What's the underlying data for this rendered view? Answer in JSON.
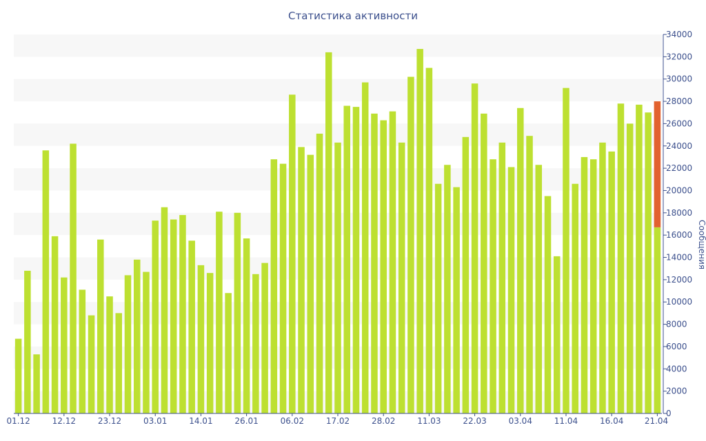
{
  "title": "Статистика активности",
  "colors": {
    "bar": "#bde031",
    "highlight": "#e2622f",
    "text": "#3b4f8c",
    "band": "#f7f7f7",
    "axis": "#3b4f8c"
  },
  "chart_data": {
    "type": "bar",
    "title": "Статистика активности",
    "ylabel": "Сообщения",
    "xlabel": "",
    "ylim": [
      0,
      34000
    ],
    "y_ticks": [
      0,
      2000,
      4000,
      6000,
      8000,
      10000,
      12000,
      14000,
      16000,
      18000,
      20000,
      22000,
      24000,
      26000,
      28000,
      30000,
      32000,
      34000
    ],
    "x_tick_labels": [
      {
        "index": 0,
        "label": "01.12"
      },
      {
        "index": 5,
        "label": "12.12"
      },
      {
        "index": 10,
        "label": "23.12"
      },
      {
        "index": 15,
        "label": "03.01"
      },
      {
        "index": 20,
        "label": "14.01"
      },
      {
        "index": 25,
        "label": "26.01"
      },
      {
        "index": 30,
        "label": "06.02"
      },
      {
        "index": 35,
        "label": "17.02"
      },
      {
        "index": 40,
        "label": "28.02"
      },
      {
        "index": 45,
        "label": "11.03"
      },
      {
        "index": 50,
        "label": "22.03"
      },
      {
        "index": 55,
        "label": "03.04"
      },
      {
        "index": 60,
        "label": "11.04"
      },
      {
        "index": 65,
        "label": "16.04"
      },
      {
        "index": 70,
        "label": "21.04"
      }
    ],
    "values": [
      6700,
      12800,
      5300,
      23600,
      15900,
      12200,
      24200,
      11100,
      8800,
      15600,
      10500,
      9000,
      12400,
      13800,
      12700,
      17300,
      18500,
      17400,
      17800,
      15500,
      13300,
      12600,
      18100,
      10800,
      18000,
      15700,
      12500,
      13500,
      22800,
      22400,
      28600,
      23900,
      23200,
      25100,
      32400,
      24300,
      27600,
      27500,
      29700,
      26900,
      26300,
      27100,
      24300,
      30200,
      32700,
      31000,
      20600,
      22300,
      20300,
      24800,
      29600,
      26900,
      22800,
      24300,
      22100,
      27400,
      24900,
      22300,
      19500,
      14100,
      29200,
      20600,
      23000,
      22800,
      24300,
      23500,
      27800,
      26000,
      27700,
      27000,
      16700
    ],
    "last_bar_highlight": {
      "base": 16700,
      "top": 28000
    },
    "grid": "alternating-bands",
    "y_axis_position": "right"
  }
}
